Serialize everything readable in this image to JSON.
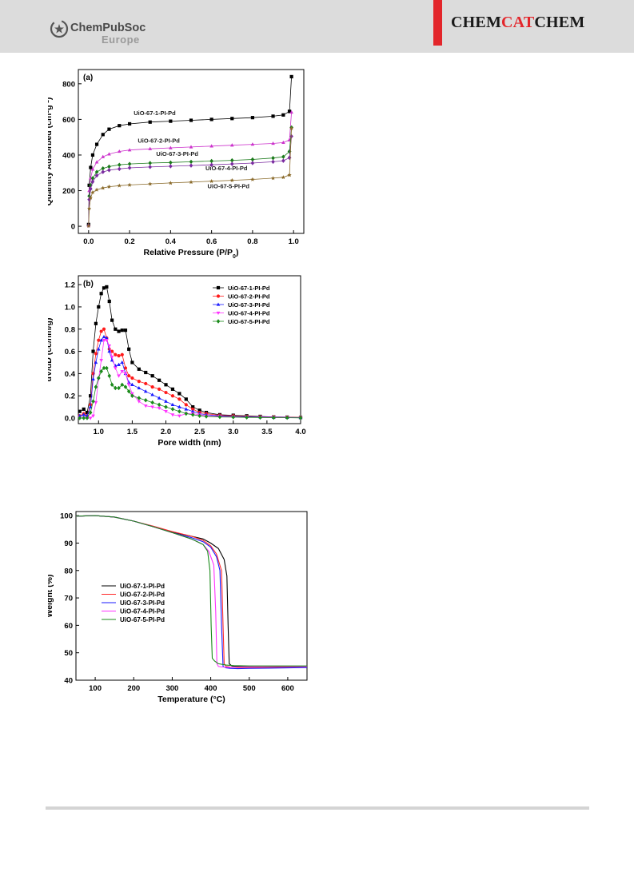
{
  "header": {
    "brand_line1": "ChemPubSoc",
    "brand_line2": "Europe",
    "journal_part1": "CHEM",
    "journal_part2": "CAT",
    "journal_part3": "CHEM",
    "accent_color": "#e3262b"
  },
  "chart_data": [
    {
      "type": "line",
      "panel_label": "(a)",
      "xlabel": "Relative Pressure (P/P0)",
      "ylabel": "Quantity Adsorbed (cm3g-1)",
      "xlim": [
        -0.05,
        1.05
      ],
      "ylim": [
        -40,
        880
      ],
      "xticks": [
        0.0,
        0.2,
        0.4,
        0.6,
        0.8,
        1.0
      ],
      "xtick_labels": [
        "0.0",
        "0.2",
        "0.4",
        "0.6",
        "0.8",
        "1.0"
      ],
      "yticks": [
        0,
        200,
        400,
        600,
        800
      ],
      "ytick_labels": [
        "0",
        "200",
        "400",
        "600",
        "800"
      ],
      "legend": "inline labels",
      "series": [
        {
          "name": "UiO-67-1-PI-Pd",
          "color": "#000000",
          "marker": "square",
          "x": [
            0.0,
            0.003,
            0.01,
            0.02,
            0.04,
            0.07,
            0.1,
            0.15,
            0.2,
            0.3,
            0.4,
            0.5,
            0.6,
            0.7,
            0.8,
            0.9,
            0.95,
            0.98
          ],
          "y": [
            10,
            230,
            330,
            400,
            460,
            515,
            545,
            565,
            575,
            585,
            590,
            595,
            600,
            605,
            610,
            618,
            625,
            645
          ],
          "return_x": [
            0.99,
            0.98
          ],
          "return_y": [
            840,
            645
          ],
          "label_at": [
            0.22,
            625
          ]
        },
        {
          "name": "UiO-67-2-PI-Pd",
          "color": "#cc33cc",
          "marker": "triangle-up",
          "x": [
            0.0,
            0.003,
            0.01,
            0.02,
            0.04,
            0.07,
            0.1,
            0.15,
            0.2,
            0.3,
            0.4,
            0.5,
            0.6,
            0.7,
            0.8,
            0.9,
            0.95,
            0.98
          ],
          "y": [
            5,
            200,
            270,
            320,
            360,
            390,
            405,
            420,
            428,
            435,
            440,
            445,
            450,
            455,
            460,
            465,
            470,
            485
          ],
          "return_x": [
            0.99,
            0.98
          ],
          "return_y": [
            640,
            485
          ],
          "label_at": [
            0.24,
            470
          ]
        },
        {
          "name": "UiO-67-3-PI-Pd",
          "color": "#1a7a1a",
          "marker": "diamond",
          "x": [
            0.0,
            0.003,
            0.01,
            0.02,
            0.04,
            0.07,
            0.1,
            0.15,
            0.2,
            0.3,
            0.4,
            0.5,
            0.6,
            0.7,
            0.8,
            0.9,
            0.95,
            0.98
          ],
          "y": [
            5,
            170,
            230,
            270,
            305,
            325,
            335,
            345,
            350,
            355,
            358,
            362,
            366,
            370,
            375,
            383,
            390,
            420
          ],
          "return_x": [
            0.99,
            0.98
          ],
          "return_y": [
            555,
            420
          ],
          "label_at": [
            0.33,
            395
          ]
        },
        {
          "name": "UiO-67-4-PI-Pd",
          "color": "#7a2aa0",
          "marker": "diamond",
          "x": [
            0.0,
            0.003,
            0.01,
            0.02,
            0.04,
            0.07,
            0.1,
            0.15,
            0.2,
            0.3,
            0.4,
            0.5,
            0.6,
            0.7,
            0.8,
            0.9,
            0.95,
            0.98
          ],
          "y": [
            5,
            150,
            210,
            250,
            285,
            305,
            315,
            322,
            328,
            333,
            337,
            341,
            345,
            350,
            355,
            362,
            368,
            385
          ],
          "return_x": [
            0.99,
            0.98
          ],
          "return_y": [
            505,
            385
          ],
          "label_at": [
            0.57,
            315
          ]
        },
        {
          "name": "UiO-67-5-PI-Pd",
          "color": "#8a6a2a",
          "marker": "star",
          "x": [
            0.0,
            0.003,
            0.01,
            0.02,
            0.04,
            0.07,
            0.1,
            0.15,
            0.2,
            0.3,
            0.4,
            0.5,
            0.6,
            0.7,
            0.8,
            0.9,
            0.95,
            0.98
          ],
          "y": [
            2,
            100,
            160,
            190,
            205,
            215,
            222,
            228,
            232,
            238,
            243,
            248,
            253,
            258,
            263,
            270,
            275,
            288
          ],
          "return_x": [
            0.99,
            0.98
          ],
          "return_y": [
            550,
            288
          ],
          "label_at": [
            0.58,
            214
          ]
        }
      ]
    },
    {
      "type": "line",
      "panel_label": "(b)",
      "xlabel": "Pore width (nm)",
      "ylabel": "dV/dD (cc/nm/g)",
      "xlim": [
        0.7,
        4.0
      ],
      "ylim": [
        -0.05,
        1.28
      ],
      "xticks": [
        1.0,
        1.5,
        2.0,
        2.5,
        3.0,
        3.5,
        4.0
      ],
      "xtick_labels": [
        "1.0",
        "1.5",
        "2.0",
        "2.5",
        "3.0",
        "3.5",
        "4.0"
      ],
      "yticks": [
        0.0,
        0.2,
        0.4,
        0.6,
        0.8,
        1.0,
        1.2
      ],
      "ytick_labels": [
        "0.0",
        "0.2",
        "0.4",
        "0.6",
        "0.8",
        "1.0",
        "1.2"
      ],
      "legend": "top-right",
      "series": [
        {
          "name": "UiO-67-1-PI-Pd",
          "color": "#000000",
          "marker": "square",
          "x": [
            0.72,
            0.78,
            0.83,
            0.88,
            0.92,
            0.96,
            1.0,
            1.04,
            1.08,
            1.12,
            1.16,
            1.2,
            1.25,
            1.3,
            1.35,
            1.4,
            1.45,
            1.5,
            1.6,
            1.7,
            1.8,
            1.9,
            2.0,
            2.1,
            2.2,
            2.3,
            2.4,
            2.5,
            2.6,
            2.8,
            3.0,
            3.2,
            3.4,
            3.6,
            3.8,
            4.0
          ],
          "y": [
            0.06,
            0.08,
            0.05,
            0.2,
            0.6,
            0.85,
            1.0,
            1.12,
            1.17,
            1.18,
            1.05,
            0.88,
            0.8,
            0.78,
            0.79,
            0.79,
            0.62,
            0.5,
            0.44,
            0.41,
            0.38,
            0.34,
            0.3,
            0.26,
            0.22,
            0.17,
            0.1,
            0.07,
            0.05,
            0.03,
            0.025,
            0.02,
            0.015,
            0.01,
            0.008,
            0.005
          ]
        },
        {
          "name": "UiO-67-2-PI-Pd",
          "color": "#ff1a1a",
          "marker": "circle",
          "x": [
            0.72,
            0.78,
            0.83,
            0.88,
            0.92,
            0.96,
            1.0,
            1.04,
            1.08,
            1.12,
            1.16,
            1.2,
            1.25,
            1.3,
            1.35,
            1.4,
            1.45,
            1.5,
            1.6,
            1.7,
            1.8,
            1.9,
            2.0,
            2.1,
            2.2,
            2.3,
            2.4,
            2.5,
            2.6,
            2.8,
            3.0,
            3.2,
            3.4,
            3.6,
            3.8,
            4.0
          ],
          "y": [
            0.02,
            0.04,
            0.02,
            0.12,
            0.4,
            0.58,
            0.7,
            0.78,
            0.8,
            0.72,
            0.62,
            0.6,
            0.57,
            0.56,
            0.57,
            0.45,
            0.38,
            0.36,
            0.33,
            0.31,
            0.28,
            0.26,
            0.23,
            0.2,
            0.17,
            0.12,
            0.08,
            0.05,
            0.04,
            0.025,
            0.02,
            0.015,
            0.012,
            0.01,
            0.008,
            0.005
          ]
        },
        {
          "name": "UiO-67-3-PI-Pd",
          "color": "#1a1aff",
          "marker": "triangle-up",
          "x": [
            0.72,
            0.78,
            0.83,
            0.88,
            0.92,
            0.96,
            1.0,
            1.04,
            1.08,
            1.12,
            1.16,
            1.2,
            1.25,
            1.3,
            1.35,
            1.4,
            1.45,
            1.5,
            1.6,
            1.7,
            1.8,
            1.9,
            2.0,
            2.1,
            2.2,
            2.3,
            2.4,
            2.5,
            2.6,
            2.8,
            3.0,
            3.2,
            3.4,
            3.6,
            3.8,
            4.0
          ],
          "y": [
            0.02,
            0.03,
            0.02,
            0.1,
            0.35,
            0.5,
            0.62,
            0.7,
            0.73,
            0.72,
            0.6,
            0.52,
            0.47,
            0.48,
            0.5,
            0.4,
            0.32,
            0.3,
            0.27,
            0.24,
            0.21,
            0.18,
            0.15,
            0.12,
            0.1,
            0.08,
            0.06,
            0.04,
            0.03,
            0.02,
            0.015,
            0.012,
            0.01,
            0.008,
            0.006,
            0.004
          ]
        },
        {
          "name": "UiO-67-4-PI-Pd",
          "color": "#ff33ff",
          "marker": "triangle-down",
          "x": [
            0.72,
            0.78,
            0.83,
            0.88,
            0.92,
            0.96,
            1.0,
            1.04,
            1.08,
            1.12,
            1.16,
            1.2,
            1.25,
            1.3,
            1.35,
            1.4,
            1.45,
            1.5,
            1.6,
            1.7,
            1.8,
            1.9,
            2.0,
            2.1,
            2.2,
            2.3,
            2.4,
            2.5,
            2.6,
            2.8,
            3.0,
            3.2,
            3.4,
            3.6,
            3.8,
            4.0
          ],
          "y": [
            0.0,
            0.0,
            0.0,
            0.0,
            0.02,
            0.14,
            0.35,
            0.52,
            0.7,
            0.7,
            0.65,
            0.55,
            0.45,
            0.38,
            0.42,
            0.4,
            0.3,
            0.22,
            0.15,
            0.11,
            0.1,
            0.09,
            0.06,
            0.03,
            0.02,
            0.04,
            0.04,
            0.03,
            0.02,
            0.015,
            0.01,
            0.008,
            0.006,
            0.005,
            0.004,
            0.003
          ]
        },
        {
          "name": "UiO-67-5-PI-Pd",
          "color": "#1a8a1a",
          "marker": "diamond",
          "x": [
            0.72,
            0.78,
            0.83,
            0.88,
            0.92,
            0.96,
            1.0,
            1.04,
            1.08,
            1.12,
            1.16,
            1.2,
            1.25,
            1.3,
            1.35,
            1.4,
            1.45,
            1.5,
            1.6,
            1.7,
            1.8,
            1.9,
            2.0,
            2.1,
            2.2,
            2.3,
            2.4,
            2.5,
            2.6,
            2.8,
            3.0,
            3.2,
            3.4,
            3.6,
            3.8,
            4.0
          ],
          "y": [
            0.0,
            0.0,
            0.0,
            0.05,
            0.15,
            0.28,
            0.36,
            0.42,
            0.45,
            0.45,
            0.38,
            0.3,
            0.27,
            0.27,
            0.3,
            0.28,
            0.24,
            0.2,
            0.18,
            0.16,
            0.14,
            0.12,
            0.1,
            0.08,
            0.06,
            0.04,
            0.03,
            0.02,
            0.015,
            0.01,
            0.008,
            0.006,
            0.005,
            0.004,
            0.003,
            0.002
          ]
        }
      ]
    },
    {
      "type": "line",
      "panel_label": "",
      "xlabel": "Temperature (°C)",
      "ylabel": "Weight (%)",
      "xlim": [
        50,
        650
      ],
      "ylim": [
        40,
        101.5
      ],
      "xticks": [
        100,
        200,
        300,
        400,
        500,
        600
      ],
      "xtick_labels": [
        "100",
        "200",
        "300",
        "400",
        "500",
        "600"
      ],
      "yticks": [
        40,
        50,
        60,
        70,
        80,
        90,
        100
      ],
      "ytick_labels": [
        "40",
        "50",
        "60",
        "70",
        "80",
        "90",
        "100"
      ],
      "legend": "center-left",
      "series": [
        {
          "name": "UiO-67-1-PI-Pd",
          "color": "#000000",
          "x": [
            50,
            100,
            150,
            200,
            250,
            300,
            350,
            380,
            400,
            420,
            435,
            442,
            445,
            448,
            455,
            470,
            500,
            550,
            600,
            650
          ],
          "y": [
            99.8,
            100,
            99.5,
            98,
            96,
            94,
            92.5,
            91.5,
            90,
            88,
            84,
            78,
            60,
            46,
            45.2,
            45,
            45,
            45,
            45,
            45
          ]
        },
        {
          "name": "UiO-67-2-PI-Pd",
          "color": "#ff2a2a",
          "x": [
            50,
            100,
            150,
            200,
            250,
            300,
            350,
            380,
            400,
            415,
            428,
            432,
            435,
            440,
            450,
            470,
            500,
            550,
            600,
            650
          ],
          "y": [
            99.8,
            100,
            99.5,
            98,
            96.2,
            94.2,
            92.5,
            91,
            89,
            86,
            80,
            60,
            46,
            45,
            44.8,
            44.6,
            44.6,
            44.6,
            44.7,
            44.8
          ]
        },
        {
          "name": "UiO-67-3-PI-Pd",
          "color": "#1a1aff",
          "x": [
            50,
            100,
            150,
            200,
            250,
            300,
            350,
            380,
            400,
            415,
            424,
            428,
            432,
            440,
            450,
            470,
            500,
            550,
            600,
            650
          ],
          "y": [
            99.8,
            100,
            99.5,
            98,
            96,
            93.8,
            92,
            90.5,
            88.5,
            85,
            80,
            60,
            45,
            44.5,
            44.3,
            44.2,
            44.3,
            44.4,
            44.5,
            44.6
          ]
        },
        {
          "name": "UiO-67-4-PI-Pd",
          "color": "#ff33ff",
          "x": [
            50,
            100,
            150,
            200,
            250,
            300,
            350,
            380,
            395,
            408,
            413,
            416,
            420,
            430,
            450,
            470,
            500,
            550,
            600,
            650
          ],
          "y": [
            99.8,
            100,
            99.5,
            98,
            96,
            93.8,
            91.5,
            89.5,
            87,
            82,
            65,
            46,
            45,
            44.8,
            44.7,
            44.8,
            44.9,
            45,
            45,
            45
          ]
        },
        {
          "name": "UiO-67-5-PI-Pd",
          "color": "#1a8a1a",
          "x": [
            50,
            100,
            150,
            200,
            250,
            300,
            350,
            380,
            392,
            398,
            401,
            404,
            410,
            420,
            440,
            460,
            500,
            550,
            600,
            650
          ],
          "y": [
            99.8,
            100,
            99.5,
            98,
            96,
            93.8,
            91.5,
            89.5,
            87,
            80,
            60,
            48,
            47,
            46,
            45.5,
            45.3,
            45.2,
            45.2,
            45.2,
            45.2
          ]
        }
      ]
    }
  ]
}
